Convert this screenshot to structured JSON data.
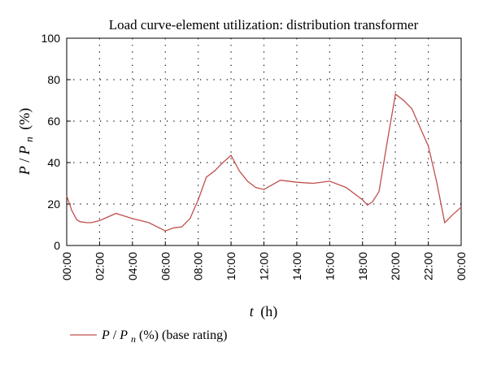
{
  "chart_data": {
    "type": "line",
    "title": "Load curve-element utilization: distribution transformer",
    "xlabel": "t (h)",
    "xlabel_var": "t",
    "xlabel_unit": "(h)",
    "ylabel": "P/Pn (%)",
    "ylabel_parts": {
      "p": "P",
      "slash": "/",
      "pn": "P",
      "sub": "n",
      "unit": "(%)"
    },
    "xlim": [
      0,
      24
    ],
    "ylim": [
      0,
      100
    ],
    "grid": true,
    "legend_position": "bottom-left",
    "x_ticks": [
      0,
      2,
      4,
      6,
      8,
      10,
      12,
      14,
      16,
      18,
      20,
      22,
      24
    ],
    "x_tick_labels": [
      "00:00",
      "02:00",
      "04:00",
      "06:00",
      "08:00",
      "10:00",
      "12:00",
      "14:00",
      "16:00",
      "18:00",
      "20:00",
      "22:00",
      "00:00"
    ],
    "y_ticks": [
      0,
      20,
      40,
      60,
      80,
      100
    ],
    "y_tick_labels": [
      "0",
      "20",
      "40",
      "60",
      "80",
      "100"
    ],
    "series": [
      {
        "name": "P/Pn (%) (base rating)",
        "legend_parts": {
          "p": "P",
          "slash": "/",
          "pn": "P",
          "sub": "n",
          "rest": " (%) (base rating)"
        },
        "color": "#c0504d",
        "x": [
          0,
          0.3,
          0.6,
          0.8,
          1.2,
          1.5,
          2,
          3,
          4,
          5,
          6,
          6.5,
          7,
          7.5,
          8,
          8.5,
          9,
          9.5,
          10,
          10.5,
          11,
          11.5,
          12,
          13,
          14,
          15,
          16,
          17,
          18,
          18.3,
          18.6,
          19,
          19.5,
          20,
          20.5,
          21,
          21.5,
          22,
          22.5,
          23,
          23.5,
          24
        ],
        "values": [
          24,
          17,
          12.5,
          11.5,
          11,
          11,
          12,
          15.5,
          13,
          11,
          7,
          8.5,
          9,
          13,
          22,
          33,
          36,
          40,
          43.5,
          36,
          31,
          28,
          27,
          31.5,
          30.5,
          30,
          31,
          28,
          22,
          19.5,
          21,
          26,
          50,
          73,
          70,
          66,
          57,
          48,
          31,
          11,
          15,
          18.5
        ]
      }
    ]
  }
}
